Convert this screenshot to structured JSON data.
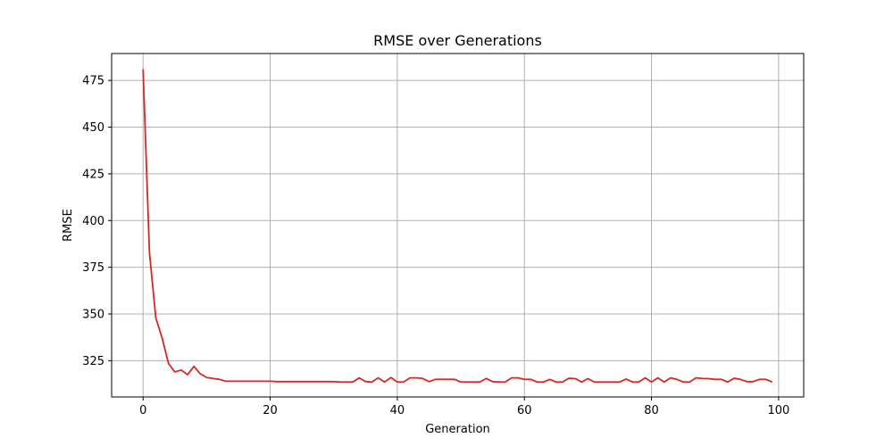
{
  "chart_data": {
    "type": "line",
    "title": "RMSE over Generations",
    "xlabel": "Generation",
    "ylabel": "RMSE",
    "xlim": [
      -4.95,
      103.95
    ],
    "ylim": [
      305.6,
      489.4
    ],
    "xticks": [
      0,
      20,
      40,
      60,
      80,
      100
    ],
    "yticks": [
      325,
      350,
      375,
      400,
      425,
      450,
      475
    ],
    "grid": true,
    "legend": "none",
    "series": [
      {
        "color": "#d62728",
        "x": [
          0,
          1,
          2,
          3,
          4,
          5,
          6,
          7,
          8,
          9,
          10,
          11,
          12,
          13,
          14,
          15,
          16,
          17,
          18,
          19,
          20,
          21,
          22,
          23,
          24,
          25,
          26,
          27,
          28,
          29,
          30,
          31,
          32,
          33,
          34,
          35,
          36,
          37,
          38,
          39,
          40,
          41,
          42,
          43,
          44,
          45,
          46,
          47,
          48,
          49,
          50,
          51,
          52,
          53,
          54,
          55,
          56,
          57,
          58,
          59,
          60,
          61,
          62,
          63,
          64,
          65,
          66,
          67,
          68,
          69,
          70,
          71,
          72,
          73,
          74,
          75,
          76,
          77,
          78,
          79,
          80,
          81,
          82,
          83,
          84,
          85,
          86,
          87,
          88,
          89,
          90,
          91,
          92,
          93,
          94,
          95,
          96,
          97,
          98,
          99
        ],
        "values": [
          481,
          383,
          348,
          337,
          323.5,
          319,
          320,
          317.5,
          322,
          318,
          316,
          315.5,
          315,
          314,
          314,
          314,
          314,
          314,
          314,
          314,
          314,
          313.8,
          313.8,
          313.8,
          313.8,
          313.8,
          313.8,
          313.8,
          313.8,
          313.8,
          313.8,
          313.6,
          313.6,
          313.6,
          315.8,
          313.8,
          313.6,
          315.8,
          313.6,
          316,
          313.6,
          313.6,
          315.8,
          315.8,
          315.5,
          313.8,
          315,
          315,
          315,
          315,
          313.6,
          313.6,
          313.6,
          313.6,
          315.5,
          313.8,
          313.6,
          313.6,
          315.8,
          315.8,
          315,
          315,
          313.6,
          313.6,
          315,
          313.6,
          313.6,
          315.6,
          315.4,
          313.6,
          315.4,
          313.6,
          313.6,
          313.6,
          313.6,
          313.6,
          315.2,
          313.6,
          313.6,
          315.8,
          313.6,
          315.8,
          313.6,
          315.8,
          315,
          313.6,
          313.6,
          315.8,
          315.5,
          315.4,
          315,
          315,
          313.6,
          315.6,
          315,
          313.8,
          313.8,
          315,
          315,
          313.6
        ]
      }
    ]
  }
}
